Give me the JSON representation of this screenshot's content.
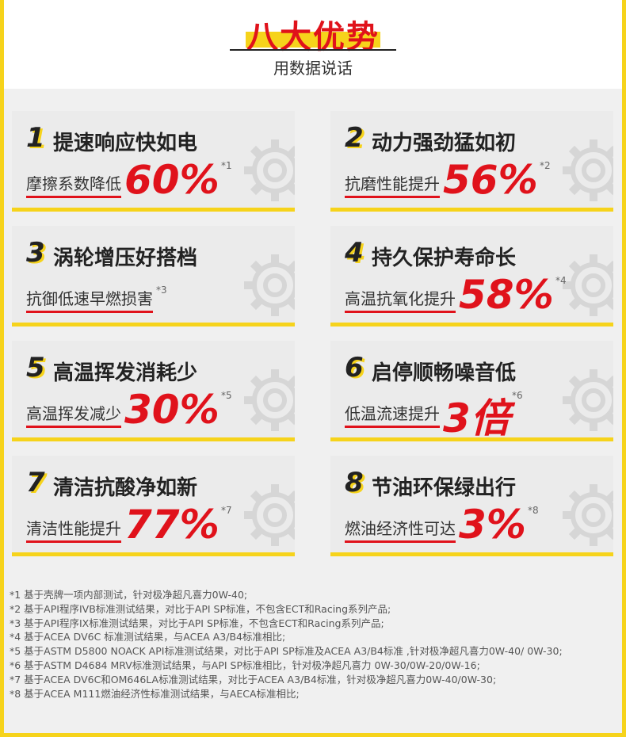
{
  "header": {
    "title": "八大优势",
    "subtitle": "用数据说话"
  },
  "cards": [
    {
      "number": "1",
      "title": "提速响应快如电",
      "label": "摩擦系数降低",
      "value": "60%",
      "note": "*1"
    },
    {
      "number": "2",
      "title": "动力强劲猛如初",
      "label": "抗磨性能提升",
      "value": "56%",
      "note": "*2"
    },
    {
      "number": "3",
      "title": "涡轮增压好搭档",
      "label": "抗御低速早燃损害",
      "note": "*3"
    },
    {
      "number": "4",
      "title": "持久保护寿命长",
      "label": "高温抗氧化提升",
      "value": "58%",
      "note": "*4"
    },
    {
      "number": "5",
      "title": "高温挥发消耗少",
      "label": "高温挥发减少",
      "value": "30%",
      "note": "*5"
    },
    {
      "number": "6",
      "title": "启停顺畅噪音低",
      "label": "低温流速提升",
      "value": "3倍",
      "note": "*6"
    },
    {
      "number": "7",
      "title": "清洁抗酸净如新",
      "label": "清洁性能提升",
      "value": "77%",
      "note": "*7"
    },
    {
      "number": "8",
      "title": "节油环保绿出行",
      "label": "燃油经济性可达",
      "value": "3%",
      "note": "*8"
    }
  ],
  "footnotes": [
    "*1 基于壳牌一项内部测试，针对极净超凡喜力0W-40;",
    "*2 基于API程序IVB标准测试结果，对比于API SP标准，不包含ECT和Racing系列产品;",
    "*3 基于API程序IX标准测试结果，对比于API SP标准，不包含ECT和Racing系列产品;",
    "*4 基于ACEA DV6C 标准测试结果，与ACEA A3/B4标准相比;",
    "*5 基于ASTM D5800 NOACK API标准测试结果，对比于API SP标准及ACEA A3/B4标准 ,针对极净超凡喜力0W-40/ 0W-30;",
    "*6 基于ASTM D4684 MRV标准测试结果，与API SP标准相比，针对极净超凡喜力 0W-30/0W-20/0W-16;",
    "*7 基于ACEA DV6C和OM646LA标准测试结果，对比于ACEA A3/B4标准，针对极净超凡喜力0W-40/0W-30;",
    "*8 基于ACEA M111燃油经济性标准测试结果，与AECA标准相比;"
  ]
}
